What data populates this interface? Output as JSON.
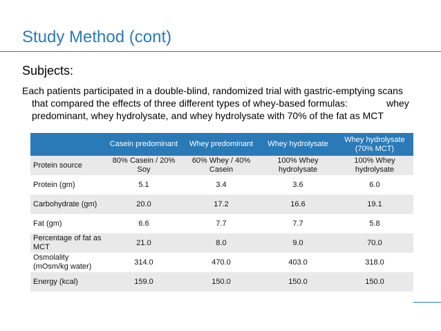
{
  "slide": {
    "title": "Study Method (cont)",
    "subtitle": "Subjects:",
    "para_line1": "Each patients participated in a double-blind, randomized trial with gastric-emptying scans",
    "para_line2a": "that compared the effects of three different types of whey-based formulas:",
    "para_line2b": "whey",
    "para_line3": "predominant, whey hydrolysate, and whey hydrolysate with 70% of the fat as MCT"
  },
  "table": {
    "headers": [
      "",
      "Casein predominant",
      "Whey predominant",
      "Whey hydrolysate",
      "Whey hydrolysate (70% MCT)"
    ],
    "rows": [
      [
        "Protein source",
        "80% Casein / 20% Soy",
        "60% Whey / 40% Casein",
        "100% Whey hydrolysate",
        "100% Whey hydrolysate"
      ],
      [
        "Protein (gm)",
        "5.1",
        "3.4",
        "3.6",
        "6.0"
      ],
      [
        "Carbohydrate (gm)",
        "20.0",
        "17.2",
        "16.6",
        "19.1"
      ],
      [
        "Fat (gm)",
        "6.6",
        "7.7",
        "7.7",
        "5.8"
      ],
      [
        "Percentage of fat as MCT",
        "21.0",
        "8.0",
        "9.0",
        "70.0"
      ],
      [
        "Osmolality (mOsm/kg water)",
        "314.0",
        "470.0",
        "403.0",
        "318.0"
      ],
      [
        "Energy (kcal)",
        "159.0",
        "150.0",
        "150.0",
        "150.0"
      ]
    ]
  },
  "colors": {
    "accent": "#2a7ab8",
    "row_shade": "#e9e9e9"
  }
}
